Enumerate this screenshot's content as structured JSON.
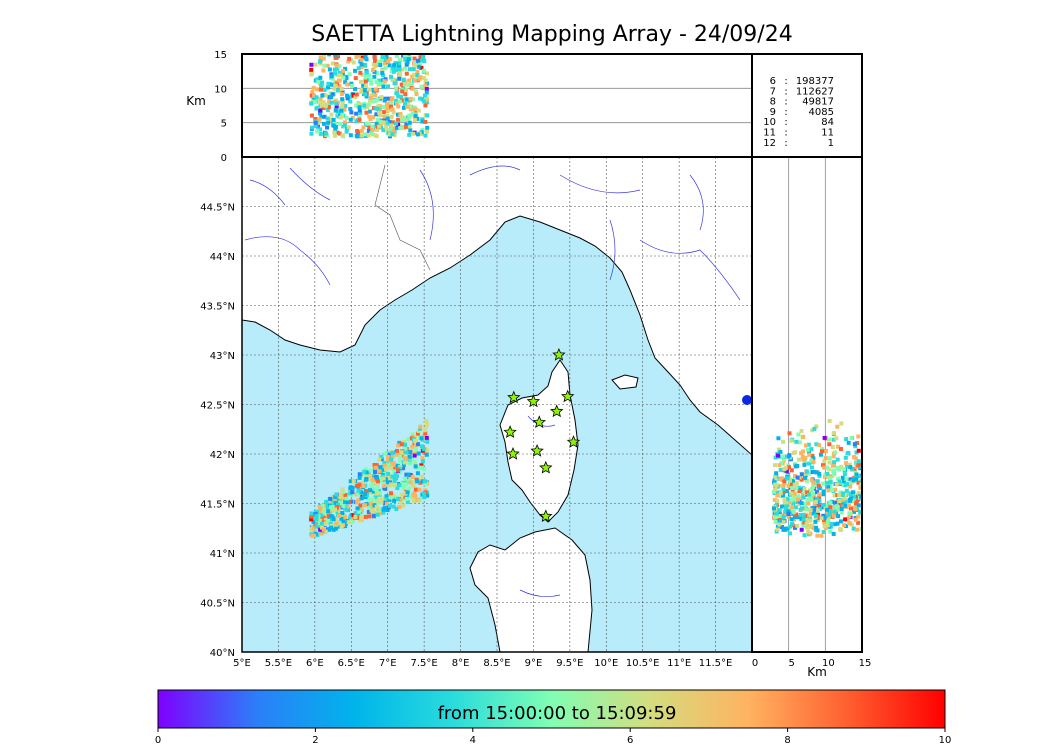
{
  "chart_data": {
    "type": "scatter",
    "title": "SAETTA Lightning Mapping Array - 24/09/24",
    "map": {
      "lon_range": [
        5,
        12
      ],
      "lat_range": [
        40,
        45
      ],
      "lon_ticks": [
        "5°E",
        "5.5°E",
        "6°E",
        "6.5°E",
        "7°E",
        "7.5°E",
        "8°E",
        "8.5°E",
        "9°E",
        "9.5°E",
        "10°E",
        "10.5°E",
        "11°E",
        "11.5°E"
      ],
      "lat_ticks": [
        "40°N",
        "40.5°N",
        "41°N",
        "41.5°N",
        "42°N",
        "42.5°N",
        "43°N",
        "43.5°N",
        "44°N",
        "44.5°N"
      ],
      "grid": true,
      "sea_color": "#b8ecfb",
      "land_color": "#ffffff"
    },
    "altitude_panel": {
      "ylabel": "Km",
      "ylim": [
        0,
        15
      ],
      "yticks": [
        "0",
        "5",
        "10",
        "15"
      ]
    },
    "side_panel": {
      "xlabel": "Km",
      "xlim": [
        0,
        15
      ],
      "xticks": [
        "0",
        "5",
        "10",
        "15"
      ]
    },
    "stations": [
      {
        "lon": 9.35,
        "lat": 43.0
      },
      {
        "lon": 8.73,
        "lat": 42.57
      },
      {
        "lon": 9.0,
        "lat": 42.53
      },
      {
        "lon": 9.47,
        "lat": 42.58
      },
      {
        "lon": 9.32,
        "lat": 42.43
      },
      {
        "lon": 9.08,
        "lat": 42.32
      },
      {
        "lon": 8.68,
        "lat": 42.22
      },
      {
        "lon": 9.55,
        "lat": 42.12
      },
      {
        "lon": 8.72,
        "lat": 42.0
      },
      {
        "lon": 9.05,
        "lat": 42.03
      },
      {
        "lon": 9.17,
        "lat": 41.86
      },
      {
        "lon": 9.17,
        "lat": 41.37
      }
    ],
    "lightning_cell": {
      "lon_range": [
        5.95,
        7.55
      ],
      "lat_range": [
        41.15,
        42.15
      ],
      "alt_range_km": [
        3,
        15
      ]
    },
    "counts_table": [
      {
        "stations": "6",
        "count": "198377",
        "highlight": false
      },
      {
        "stations": "7",
        "count": "112627",
        "highlight": true
      },
      {
        "stations": "8",
        "count": "49817",
        "highlight": false
      },
      {
        "stations": "9",
        "count": "4085",
        "highlight": false
      },
      {
        "stations": "10",
        "count": "84",
        "highlight": false
      },
      {
        "stations": "11",
        "count": "11",
        "highlight": false
      },
      {
        "stations": "12",
        "count": "1",
        "highlight": false
      }
    ],
    "colorbar": {
      "label": "from 15:00:00 to 15:09:59",
      "range": [
        0,
        10
      ],
      "ticks": [
        "0",
        "2",
        "4",
        "6",
        "8",
        "10"
      ],
      "colors": [
        "#7f00ff",
        "#2c7ef8",
        "#00b4eb",
        "#2adcdc",
        "#80feb3",
        "#d4dc7f",
        "#ffb360",
        "#ff6030",
        "#ff0000"
      ]
    }
  }
}
